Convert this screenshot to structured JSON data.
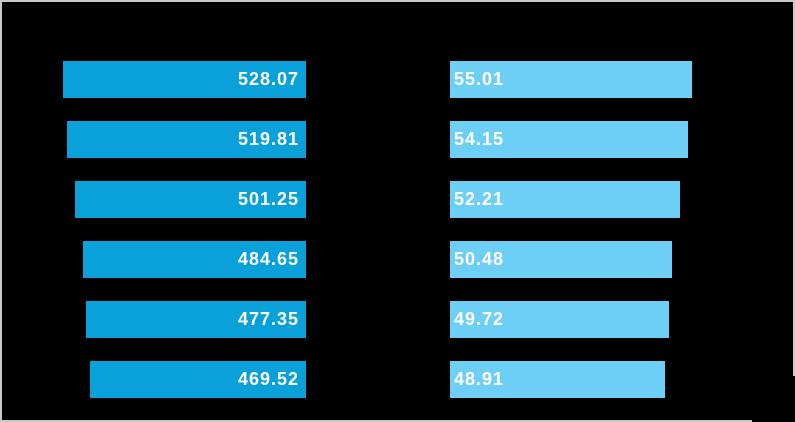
{
  "frame": {
    "background": "#000000",
    "border_color": "#c8c8c8"
  },
  "chart_data": {
    "type": "bar",
    "orientation": "horizontal",
    "rows": 6,
    "axes_visible": false,
    "grid": false,
    "category_labels_visible": false,
    "series": [
      {
        "name": "left-panel-series",
        "color": "#0aa0da",
        "label_color": "#ffffff",
        "bar_alignment": "right-aligned",
        "bars_grow": "leftward",
        "value_label_position": "inside-right-end",
        "values": [
          528.07,
          519.81,
          501.25,
          484.65,
          477.35,
          469.52
        ],
        "value_labels": [
          "528.07",
          "519.81",
          "501.25",
          "484.65",
          "477.35",
          "469.52"
        ]
      },
      {
        "name": "right-panel-series",
        "color": "#6dcff6",
        "label_color": "#ffffff",
        "bar_alignment": "left-aligned",
        "bars_grow": "rightward",
        "value_label_position": "inside-left-end",
        "values": [
          55.01,
          54.15,
          52.21,
          50.48,
          49.72,
          48.91
        ],
        "value_labels": [
          "55.01",
          "54.15",
          "52.21",
          "50.48",
          "49.72",
          "48.91"
        ]
      }
    ]
  }
}
